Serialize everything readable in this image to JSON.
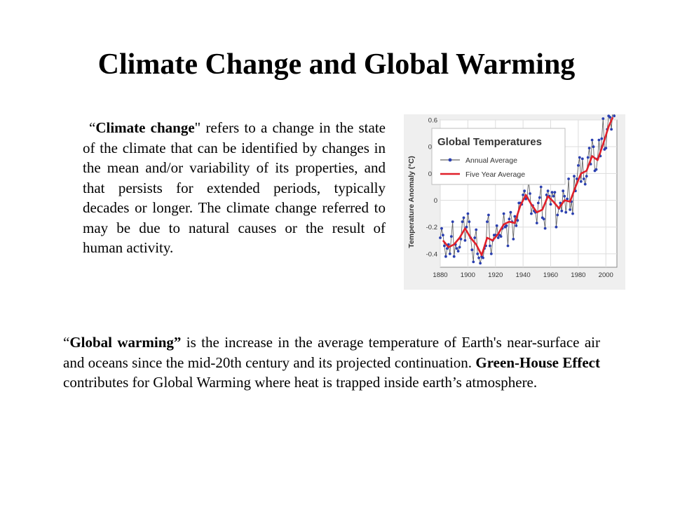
{
  "slide": {
    "title": "Climate Change and Global Warming",
    "p1": {
      "open_quote": "“",
      "term": "Climate change",
      "text": "\" refers to a change in the state of the climate that can be identified by changes in the mean and/or variability of its properties, and that persists for extended periods, typically decades or longer. The climate change referred to may be due to natural causes or the result of human activity."
    },
    "p2": {
      "open_quote": "“",
      "term": "Global warming”",
      "text_a": " is the increase in the average temperature of Earth's near-surface air and oceans since the mid-20th century and its projected continuation. ",
      "term2": "Green-House Effect",
      "text_b": " contributes for Global Warming where heat is trapped inside earth’s atmosphere."
    }
  },
  "chart_data": {
    "type": "line",
    "title": "Global Temperatures",
    "ylabel": "Temperature Anomaly (°C)",
    "xlabel": "",
    "xlim": [
      1880,
      2008
    ],
    "ylim": [
      -0.5,
      0.6
    ],
    "x_ticks": [
      "1880",
      "1900",
      "1920",
      "1940",
      "1960",
      "1980",
      "2000"
    ],
    "y_ticks": [
      "-0.4",
      "-0.2",
      "0",
      "0.2",
      "0.4",
      "0.6"
    ],
    "grid": true,
    "legend_position": "top-left",
    "colors": {
      "annual": "#2a3fb0",
      "annual_line": "#666666",
      "five_year": "#e0202a"
    },
    "series": [
      {
        "name": "Annual Average",
        "x": [
          1880,
          1881,
          1882,
          1883,
          1884,
          1885,
          1886,
          1887,
          1888,
          1889,
          1890,
          1891,
          1892,
          1893,
          1894,
          1895,
          1896,
          1897,
          1898,
          1899,
          1900,
          1901,
          1902,
          1903,
          1904,
          1905,
          1906,
          1907,
          1908,
          1909,
          1910,
          1911,
          1912,
          1913,
          1914,
          1915,
          1916,
          1917,
          1918,
          1919,
          1920,
          1921,
          1922,
          1923,
          1924,
          1925,
          1926,
          1927,
          1928,
          1929,
          1930,
          1931,
          1932,
          1933,
          1934,
          1935,
          1936,
          1937,
          1938,
          1939,
          1940,
          1941,
          1942,
          1943,
          1944,
          1945,
          1946,
          1947,
          1948,
          1949,
          1950,
          1951,
          1952,
          1953,
          1954,
          1955,
          1956,
          1957,
          1958,
          1959,
          1960,
          1961,
          1962,
          1963,
          1964,
          1965,
          1966,
          1967,
          1968,
          1969,
          1970,
          1971,
          1972,
          1973,
          1974,
          1975,
          1976,
          1977,
          1978,
          1979,
          1980,
          1981,
          1982,
          1983,
          1984,
          1985,
          1986,
          1987,
          1988,
          1989,
          1990,
          1991,
          1992,
          1993,
          1994,
          1995,
          1996,
          1997,
          1998,
          1999,
          2000,
          2001,
          2002,
          2003,
          2004,
          2005,
          2006,
          2007
        ],
        "values": [
          -0.28,
          -0.21,
          -0.26,
          -0.34,
          -0.42,
          -0.36,
          -0.33,
          -0.4,
          -0.27,
          -0.16,
          -0.42,
          -0.33,
          -0.36,
          -0.38,
          -0.35,
          -0.29,
          -0.16,
          -0.13,
          -0.3,
          -0.2,
          -0.1,
          -0.16,
          -0.28,
          -0.37,
          -0.46,
          -0.28,
          -0.22,
          -0.4,
          -0.43,
          -0.47,
          -0.42,
          -0.43,
          -0.36,
          -0.34,
          -0.16,
          -0.11,
          -0.34,
          -0.4,
          -0.3,
          -0.26,
          -0.26,
          -0.19,
          -0.28,
          -0.26,
          -0.27,
          -0.21,
          -0.1,
          -0.2,
          -0.19,
          -0.34,
          -0.14,
          -0.09,
          -0.16,
          -0.29,
          -0.12,
          -0.19,
          -0.15,
          -0.02,
          -0.02,
          -0.03,
          0.04,
          0.07,
          0.01,
          0.02,
          0.15,
          0.05,
          -0.1,
          -0.04,
          -0.08,
          -0.09,
          -0.17,
          -0.02,
          0.02,
          0.1,
          -0.13,
          -0.14,
          -0.21,
          0.04,
          0.07,
          0.03,
          -0.03,
          0.06,
          0.03,
          0.06,
          -0.2,
          -0.11,
          -0.06,
          -0.02,
          -0.08,
          0.07,
          0.03,
          -0.09,
          0.01,
          0.16,
          -0.07,
          -0.01,
          -0.1,
          0.18,
          0.07,
          0.16,
          0.26,
          0.32,
          0.14,
          0.31,
          0.16,
          0.12,
          0.18,
          0.32,
          0.39,
          0.27,
          0.45,
          0.4,
          0.22,
          0.23,
          0.31,
          0.45,
          0.33,
          0.46,
          0.61,
          0.38,
          0.39,
          0.53,
          0.63,
          0.62,
          0.53,
          0.67,
          0.63,
          0.66
        ]
      },
      {
        "name": "Five Year Average",
        "x": [
          1882,
          1886,
          1890,
          1894,
          1898,
          1902,
          1906,
          1910,
          1914,
          1918,
          1922,
          1926,
          1930,
          1934,
          1938,
          1942,
          1946,
          1950,
          1954,
          1958,
          1962,
          1966,
          1970,
          1974,
          1978,
          1982,
          1986,
          1990,
          1994,
          1998,
          2002,
          2005
        ],
        "values": [
          -0.3,
          -0.35,
          -0.33,
          -0.28,
          -0.21,
          -0.28,
          -0.33,
          -0.41,
          -0.28,
          -0.3,
          -0.25,
          -0.18,
          -0.16,
          -0.17,
          -0.04,
          0.04,
          -0.03,
          -0.09,
          -0.07,
          0.03,
          -0.01,
          -0.06,
          0.0,
          -0.01,
          0.1,
          0.2,
          0.22,
          0.33,
          0.3,
          0.42,
          0.55,
          0.62
        ]
      }
    ]
  }
}
